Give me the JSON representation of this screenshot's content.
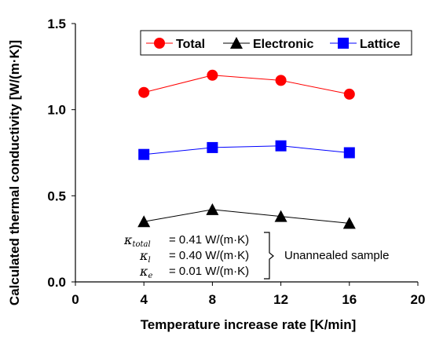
{
  "chart_data": {
    "type": "line",
    "xlabel": "Temperature increase rate [K/min]",
    "ylabel": "Calculated thermal conductivity [W/(m·K)]",
    "xlim": [
      0,
      20
    ],
    "ylim": [
      0.0,
      1.5
    ],
    "x_ticks": [
      "0",
      "4",
      "8",
      "12",
      "16",
      "20"
    ],
    "y_ticks": [
      "0.0",
      "0.5",
      "1.0",
      "1.5"
    ],
    "grid": false,
    "legend_position": "top-right",
    "x": [
      4,
      8,
      12,
      16
    ],
    "series": [
      {
        "name": "Total",
        "values": [
          1.1,
          1.2,
          1.17,
          1.09
        ],
        "color": "#ff0000",
        "marker": "circle"
      },
      {
        "name": "Electronic",
        "values": [
          0.35,
          0.42,
          0.38,
          0.34
        ],
        "color": "#000000",
        "marker": "triangle"
      },
      {
        "name": "Lattice",
        "values": [
          0.74,
          0.78,
          0.79,
          0.75
        ],
        "color": "#0000ff",
        "marker": "square"
      }
    ],
    "annotation": {
      "lines": [
        {
          "symbol": "κ",
          "sub": "total",
          "text": "= 0.41 W/(m·K)"
        },
        {
          "symbol": "κ",
          "sub": "l",
          "text": "= 0.40 W/(m·K)"
        },
        {
          "symbol": "κ",
          "sub": "e",
          "text": "= 0.01 W/(m·K)"
        }
      ],
      "label": "Unannealed sample"
    }
  }
}
